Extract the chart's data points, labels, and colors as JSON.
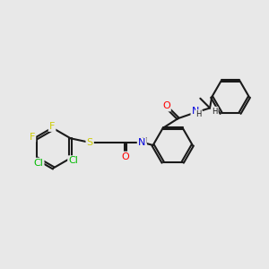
{
  "bg_color": "#e8e8e8",
  "bond_color": "#1a1a1a",
  "bond_width": 1.5,
  "atom_colors": {
    "F": "#cccc00",
    "Cl": "#00bb00",
    "S": "#cccc00",
    "N": "#0000dd",
    "O": "#ff0000",
    "C": "#1a1a1a",
    "H": "#1a1a1a"
  },
  "font_size": 7.5,
  "fig_size": [
    3.0,
    3.0
  ],
  "dpi": 100
}
